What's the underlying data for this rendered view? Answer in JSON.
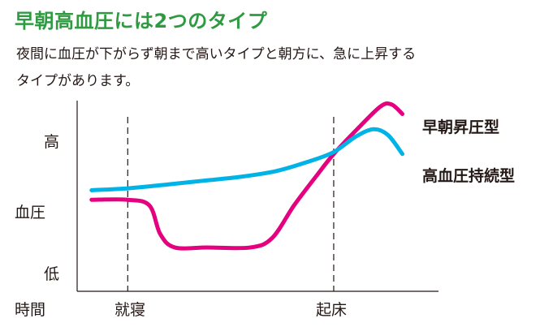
{
  "heading": "早朝高血圧には2つのタイプ",
  "description": {
    "line1": "夜間に血圧が下がらず朝まで高いタイプと朝方に、急に上昇する",
    "line2": "タイプがあります。"
  },
  "colors": {
    "heading": "#2f9a42",
    "morning_surge": "#e4007f",
    "sustained_hypertension": "#00b3e6",
    "axis": "#231815"
  },
  "chart_data": {
    "type": "line",
    "title": "",
    "ylabel": "血圧",
    "xlabel": "時間",
    "y_tick_labels": {
      "high": "高",
      "low": "低"
    },
    "ylim": [
      0,
      100
    ],
    "xlim": [
      0,
      100
    ],
    "grid": false,
    "events": [
      {
        "label": "就寝",
        "x": 14
      },
      {
        "label": "起床",
        "x": 71
      }
    ],
    "series": [
      {
        "name": "早朝昇圧型",
        "color": "#e4007f",
        "points": [
          [
            4,
            48
          ],
          [
            14,
            48
          ],
          [
            20,
            45
          ],
          [
            23,
            30
          ],
          [
            27,
            23
          ],
          [
            36,
            23
          ],
          [
            48,
            23
          ],
          [
            54,
            28
          ],
          [
            60,
            45
          ],
          [
            66,
            60
          ],
          [
            71,
            72
          ],
          [
            78,
            86
          ],
          [
            84,
            97
          ],
          [
            87,
            98
          ],
          [
            90,
            93
          ]
        ]
      },
      {
        "name": "高血圧持続型",
        "color": "#00b3e6",
        "points": [
          [
            4,
            53
          ],
          [
            14,
            54
          ],
          [
            25,
            56
          ],
          [
            35,
            58
          ],
          [
            45,
            60
          ],
          [
            55,
            63
          ],
          [
            64,
            68
          ],
          [
            71,
            73
          ],
          [
            77,
            81
          ],
          [
            82,
            85
          ],
          [
            86,
            82
          ],
          [
            90,
            72
          ]
        ]
      }
    ]
  }
}
